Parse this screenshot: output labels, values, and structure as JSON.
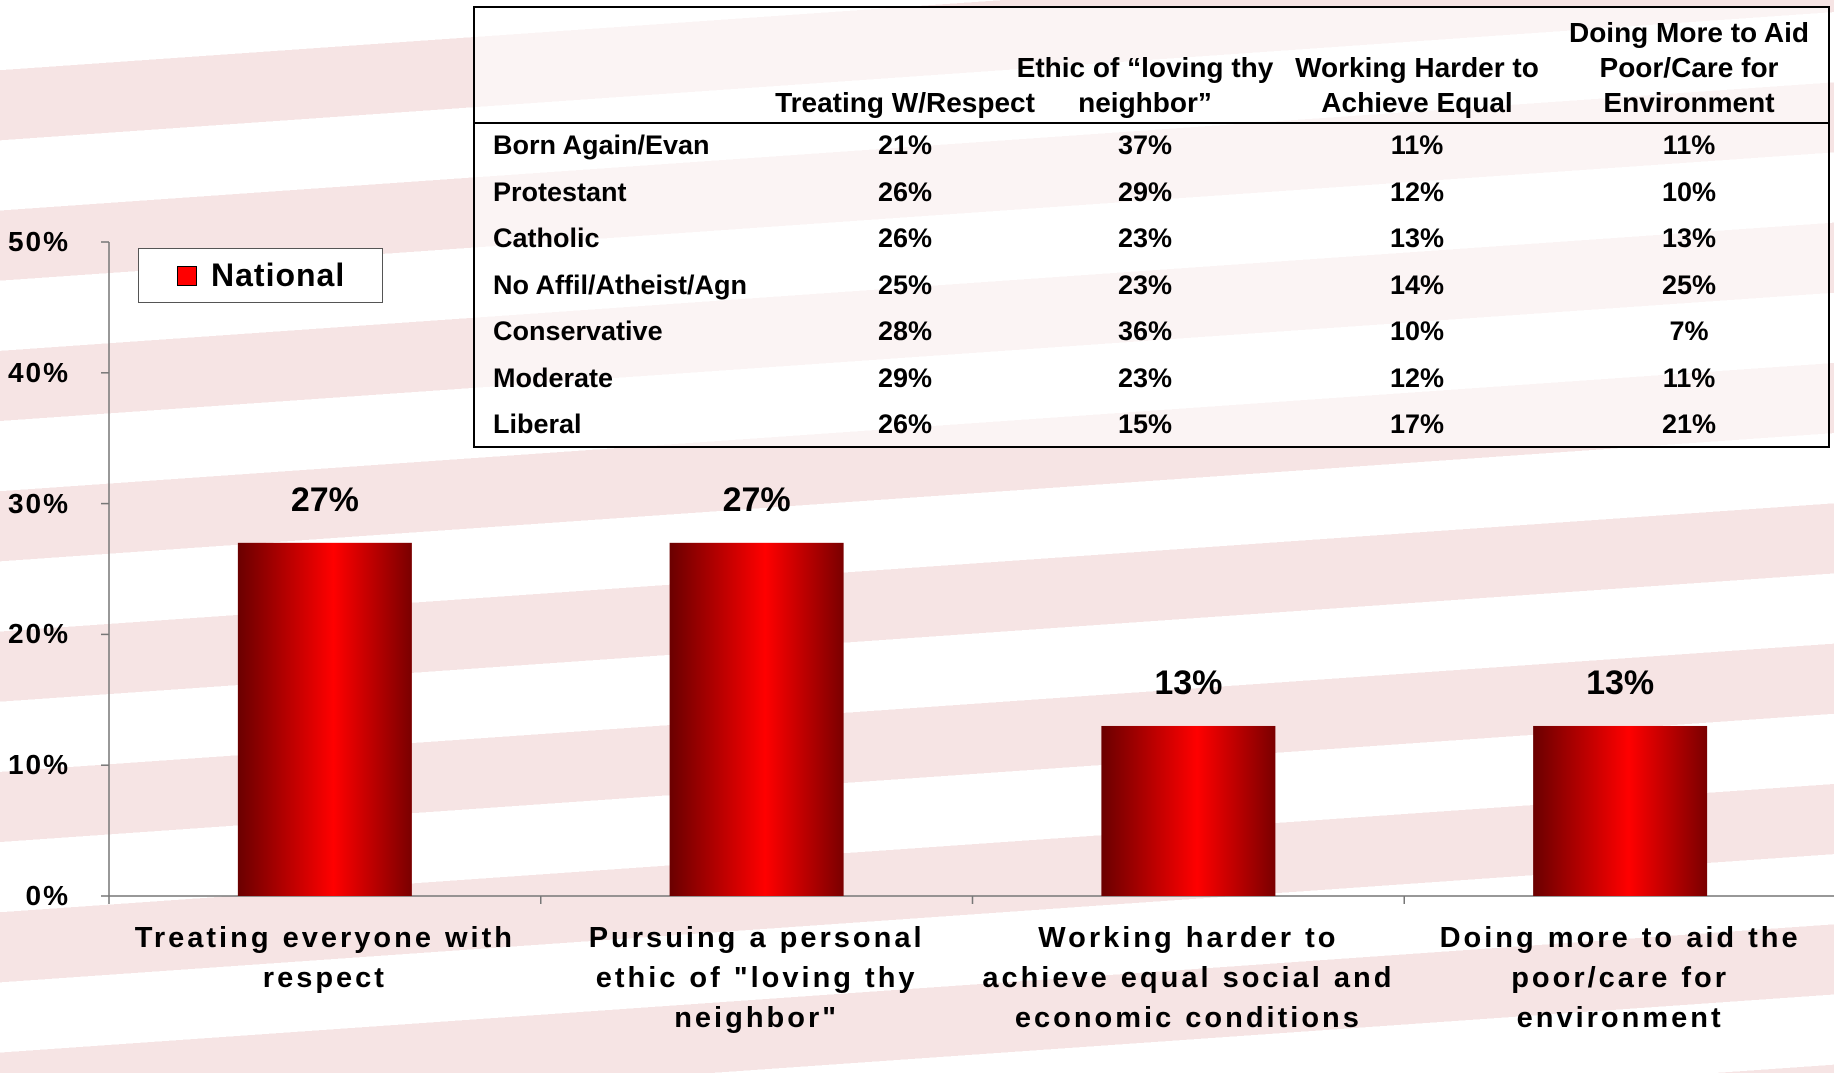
{
  "chart_data": {
    "type": "bar",
    "categories": [
      "Treating everyone with respect",
      "Pursuing a personal ethic of \"loving thy neighbor\"",
      "Working harder to achieve equal social and economic conditions",
      "Doing more to aid the poor/care for environment"
    ],
    "series": [
      {
        "name": "National",
        "color": "#ff0000",
        "values": [
          27,
          27,
          13,
          13
        ],
        "value_labels": [
          "27%",
          "27%",
          "13%",
          "13%"
        ]
      }
    ],
    "ylim": [
      0,
      50
    ],
    "yticks": [
      {
        "value": 0,
        "label": "0%"
      },
      {
        "value": 10,
        "label": "10%"
      },
      {
        "value": 20,
        "label": "20%"
      },
      {
        "value": 30,
        "label": "30%"
      },
      {
        "value": 40,
        "label": "40%"
      },
      {
        "value": 50,
        "label": "50%"
      }
    ],
    "grid": false,
    "legend": "upper left"
  },
  "table": {
    "columns": [
      "Treating W/Respect",
      "Ethic of “loving thy neighbor”",
      "Working Harder to Achieve Equal",
      "Doing More to Aid Poor/Care for Environment"
    ],
    "rows": [
      [
        "Born Again/Evan",
        "21%",
        "37%",
        "11%",
        "11%"
      ],
      [
        "Protestant",
        "26%",
        "29%",
        "12%",
        "10%"
      ],
      [
        "Catholic",
        "26%",
        "23%",
        "13%",
        "13%"
      ],
      [
        "No Affil/Atheist/Agn",
        "25%",
        "23%",
        "14%",
        "25%"
      ],
      [
        "Conservative",
        "28%",
        "36%",
        "10%",
        "7%"
      ],
      [
        "Moderate",
        "29%",
        "23%",
        "12%",
        "11%"
      ],
      [
        "Liberal",
        "26%",
        "15%",
        "17%",
        "21%"
      ]
    ]
  }
}
